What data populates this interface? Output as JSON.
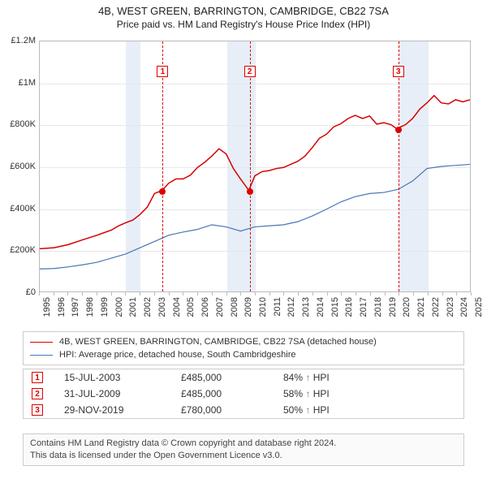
{
  "title_line1": "4B, WEST GREEN, BARRINGTON, CAMBRIDGE, CB22 7SA",
  "title_line2": "Price paid vs. HM Land Registry's House Price Index (HPI)",
  "chart": {
    "type": "line",
    "background_color": "#ffffff",
    "grid_color": "#e8e8e8",
    "border_color": "#bbbbbb",
    "band_color": "#dde7f4",
    "y": {
      "min": 0,
      "max": 1200000,
      "step": 200000,
      "tick_labels": [
        "£0",
        "£200K",
        "£400K",
        "£600K",
        "£800K",
        "£1M",
        "£1.2M"
      ],
      "label_fontsize": 11
    },
    "x": {
      "min": 1995,
      "max": 2025,
      "years": [
        1995,
        1996,
        1997,
        1998,
        1999,
        2000,
        2001,
        2002,
        2003,
        2004,
        2005,
        2006,
        2007,
        2008,
        2009,
        2010,
        2011,
        2012,
        2013,
        2014,
        2015,
        2016,
        2017,
        2018,
        2019,
        2020,
        2021,
        2022,
        2023,
        2024,
        2025
      ],
      "label_fontsize": 11
    },
    "bands": [
      {
        "from": 2001,
        "to": 2002
      },
      {
        "from": 2008,
        "to": 2010
      },
      {
        "from": 2020,
        "to": 2022
      }
    ],
    "series": [
      {
        "id": "property",
        "label": "4B, WEST GREEN, BARRINGTON, CAMBRIDGE, CB22 7SA (detached house)",
        "color": "#d60000",
        "line_width": 1.5,
        "points": [
          [
            1995,
            205000
          ],
          [
            1996,
            210000
          ],
          [
            1997,
            225000
          ],
          [
            1998,
            248000
          ],
          [
            1999,
            270000
          ],
          [
            2000,
            295000
          ],
          [
            2000.5,
            315000
          ],
          [
            2001,
            330000
          ],
          [
            2001.5,
            343000
          ],
          [
            2002,
            370000
          ],
          [
            2002.5,
            405000
          ],
          [
            2003,
            470000
          ],
          [
            2003.54,
            485000
          ],
          [
            2004,
            520000
          ],
          [
            2004.5,
            540000
          ],
          [
            2005,
            540000
          ],
          [
            2005.5,
            558000
          ],
          [
            2006,
            595000
          ],
          [
            2006.5,
            620000
          ],
          [
            2007,
            650000
          ],
          [
            2007.5,
            685000
          ],
          [
            2008,
            660000
          ],
          [
            2008.5,
            590000
          ],
          [
            2009,
            540000
          ],
          [
            2009.58,
            485000
          ],
          [
            2010,
            555000
          ],
          [
            2010.5,
            575000
          ],
          [
            2011,
            580000
          ],
          [
            2011.5,
            590000
          ],
          [
            2012,
            595000
          ],
          [
            2012.5,
            610000
          ],
          [
            2013,
            625000
          ],
          [
            2013.5,
            650000
          ],
          [
            2014,
            690000
          ],
          [
            2014.5,
            735000
          ],
          [
            2015,
            755000
          ],
          [
            2015.5,
            790000
          ],
          [
            2016,
            805000
          ],
          [
            2016.5,
            830000
          ],
          [
            2017,
            845000
          ],
          [
            2017.5,
            830000
          ],
          [
            2018,
            842000
          ],
          [
            2018.5,
            803000
          ],
          [
            2019,
            810000
          ],
          [
            2019.5,
            800000
          ],
          [
            2019.91,
            780000
          ],
          [
            2020,
            785000
          ],
          [
            2020.5,
            800000
          ],
          [
            2021,
            830000
          ],
          [
            2021.5,
            875000
          ],
          [
            2022,
            905000
          ],
          [
            2022.5,
            940000
          ],
          [
            2023,
            905000
          ],
          [
            2023.5,
            900000
          ],
          [
            2024,
            920000
          ],
          [
            2024.5,
            910000
          ],
          [
            2025,
            920000
          ]
        ]
      },
      {
        "id": "hpi",
        "label": "HPI: Average price, detached house, South Cambridgeshire",
        "color": "#4a74b8",
        "line_width": 1.2,
        "points": [
          [
            1995,
            108000
          ],
          [
            1996,
            110000
          ],
          [
            1997,
            118000
          ],
          [
            1998,
            128000
          ],
          [
            1999,
            140000
          ],
          [
            2000,
            160000
          ],
          [
            2001,
            180000
          ],
          [
            2002,
            210000
          ],
          [
            2003,
            240000
          ],
          [
            2004,
            270000
          ],
          [
            2005,
            285000
          ],
          [
            2006,
            298000
          ],
          [
            2007,
            320000
          ],
          [
            2008,
            310000
          ],
          [
            2009,
            290000
          ],
          [
            2010,
            310000
          ],
          [
            2011,
            315000
          ],
          [
            2012,
            320000
          ],
          [
            2013,
            335000
          ],
          [
            2014,
            362000
          ],
          [
            2015,
            395000
          ],
          [
            2016,
            430000
          ],
          [
            2017,
            455000
          ],
          [
            2018,
            470000
          ],
          [
            2019,
            475000
          ],
          [
            2020,
            490000
          ],
          [
            2021,
            530000
          ],
          [
            2022,
            590000
          ],
          [
            2023,
            600000
          ],
          [
            2024,
            605000
          ],
          [
            2025,
            610000
          ]
        ]
      }
    ],
    "sale_markers": [
      {
        "n": "1",
        "year": 2003.54,
        "price": 485000
      },
      {
        "n": "2",
        "year": 2009.58,
        "price": 485000
      },
      {
        "n": "3",
        "year": 2019.91,
        "price": 780000
      }
    ]
  },
  "legend": {
    "rows": [
      {
        "color": "#d60000",
        "width": 1.5,
        "label_path": "chart.series.0.label"
      },
      {
        "color": "#4a74b8",
        "width": 1.2,
        "label_path": "chart.series.1.label"
      }
    ]
  },
  "sales_table": {
    "rows": [
      {
        "n": "1",
        "date": "15-JUL-2003",
        "price": "£485,000",
        "pct": "84%",
        "rel": "HPI",
        "arrow": "↑"
      },
      {
        "n": "2",
        "date": "31-JUL-2009",
        "price": "£485,000",
        "pct": "58%",
        "rel": "HPI",
        "arrow": "↑"
      },
      {
        "n": "3",
        "date": "29-NOV-2019",
        "price": "£780,000",
        "pct": "50%",
        "rel": "HPI",
        "arrow": "↑"
      }
    ]
  },
  "footer": {
    "line1": "Contains HM Land Registry data © Crown copyright and database right 2024.",
    "line2": "This data is licensed under the Open Government Licence v3.0."
  }
}
